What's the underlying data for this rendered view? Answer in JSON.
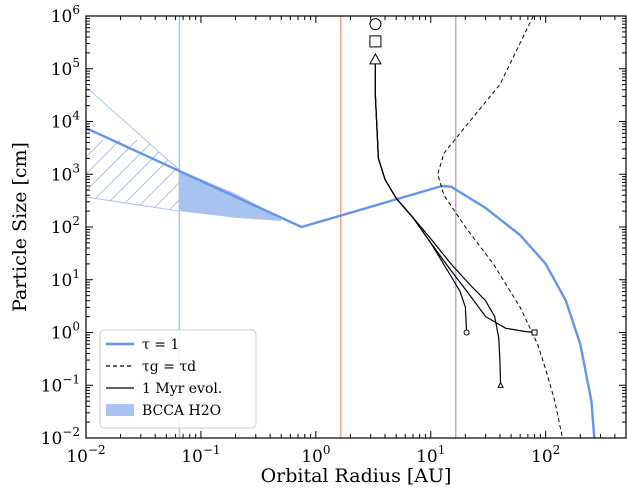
{
  "chart_data": {
    "type": "line",
    "xlabel": "Orbital Radius [AU]",
    "ylabel": "Particle Size [cm]",
    "xscale": "log",
    "yscale": "log",
    "xlim": [
      0.01,
      500
    ],
    "ylim": [
      0.01,
      1000000
    ],
    "x_ticks": [
      {
        "value": 0.01,
        "base": "10",
        "exp": "−2"
      },
      {
        "value": 0.1,
        "base": "10",
        "exp": "−1"
      },
      {
        "value": 1,
        "base": "10",
        "exp": "0"
      },
      {
        "value": 10,
        "base": "10",
        "exp": "1"
      },
      {
        "value": 100,
        "base": "10",
        "exp": "2"
      }
    ],
    "y_ticks": [
      {
        "value": 0.01,
        "base": "10",
        "exp": "−2"
      },
      {
        "value": 0.1,
        "base": "10",
        "exp": "−1"
      },
      {
        "value": 1,
        "base": "10",
        "exp": "0"
      },
      {
        "value": 10,
        "base": "10",
        "exp": "1"
      },
      {
        "value": 100,
        "base": "10",
        "exp": "2"
      },
      {
        "value": 1000,
        "base": "10",
        "exp": "3"
      },
      {
        "value": 10000,
        "base": "10",
        "exp": "4"
      },
      {
        "value": 100000,
        "base": "10",
        "exp": "5"
      },
      {
        "value": 1000000,
        "base": "10",
        "exp": "6"
      }
    ],
    "vertical_lines": [
      {
        "x": 0.065,
        "color": "#9ecae1"
      },
      {
        "x": 1.65,
        "color": "#f4a08a"
      },
      {
        "x": 16.5,
        "color": "#c9a0dc"
      }
    ],
    "series": [
      {
        "name": "τ = 1",
        "style": "solid-thick",
        "color": "#6495ed",
        "points": [
          [
            0.01,
            7500
          ],
          [
            0.75,
            100
          ],
          [
            12.5,
            600
          ],
          [
            15,
            580
          ],
          [
            30,
            230
          ],
          [
            60,
            70
          ],
          [
            100,
            20
          ],
          [
            150,
            4
          ],
          [
            200,
            0.6
          ],
          [
            250,
            0.05
          ],
          [
            265,
            0.01
          ]
        ]
      },
      {
        "name": "τg = τd",
        "style": "dashed",
        "color": "#000000",
        "points": [
          [
            78,
            1000000
          ],
          [
            40,
            50000
          ],
          [
            20,
            8000
          ],
          [
            13,
            2500
          ],
          [
            11.5,
            1000
          ],
          [
            13,
            400
          ],
          [
            20,
            100
          ],
          [
            35,
            20
          ],
          [
            60,
            3
          ],
          [
            85,
            0.6
          ],
          [
            100,
            0.2
          ],
          [
            120,
            0.05
          ],
          [
            140,
            0.01
          ]
        ]
      },
      {
        "name": "1 Myr evol.",
        "style": "solid",
        "color": "#000000",
        "tracks": [
          [
            [
              3.3,
              150000
            ],
            [
              3.3,
              30000
            ],
            [
              3.5,
              2000
            ],
            [
              4,
              800
            ],
            [
              5,
              350
            ],
            [
              7,
              150
            ],
            [
              10,
              50
            ],
            [
              14,
              15
            ],
            [
              18,
              6
            ],
            [
              20,
              3
            ],
            [
              20.5,
              1
            ]
          ],
          [
            [
              3.3,
              150000
            ],
            [
              3.3,
              30000
            ],
            [
              3.5,
              2000
            ],
            [
              4,
              800
            ],
            [
              5,
              350
            ],
            [
              7,
              150
            ],
            [
              10,
              50
            ],
            [
              15,
              15
            ],
            [
              22,
              5
            ],
            [
              30,
              2
            ],
            [
              45,
              1.2
            ],
            [
              65,
              1.05
            ],
            [
              80,
              1
            ]
          ],
          [
            [
              3.3,
              150000
            ],
            [
              3.3,
              30000
            ],
            [
              3.5,
              2000
            ],
            [
              4,
              800
            ],
            [
              5,
              350
            ],
            [
              7,
              150
            ],
            [
              10,
              60
            ],
            [
              15,
              20
            ],
            [
              22,
              8
            ],
            [
              30,
              4
            ],
            [
              36,
              2
            ],
            [
              39,
              0.8
            ],
            [
              40,
              0.3
            ],
            [
              40.5,
              0.1
            ]
          ]
        ],
        "end_markers": [
          {
            "x": 20.5,
            "y": 1,
            "shape": "circle"
          },
          {
            "x": 80,
            "y": 1,
            "shape": "square"
          },
          {
            "x": 40.5,
            "y": 0.1,
            "shape": "triangle"
          }
        ],
        "start_markers": [
          {
            "x": 3.3,
            "y": 700000,
            "shape": "circle"
          },
          {
            "x": 3.3,
            "y": 330000,
            "shape": "square"
          },
          {
            "x": 3.3,
            "y": 150000,
            "shape": "triangle"
          }
        ]
      },
      {
        "name": "BCCA H2O",
        "style": "filled",
        "color": "#a9c3f0",
        "solid_band": {
          "x": [
            0.065,
            0.2,
            0.5
          ],
          "upper": [
            1200,
            430,
            150
          ],
          "lower": [
            200,
            150,
            130
          ]
        },
        "hatched_band": {
          "x": [
            0.01,
            0.065
          ],
          "upper": [
            45000,
            1200
          ],
          "lower": [
            370,
            200
          ]
        }
      }
    ],
    "legend": {
      "placement": "lower-left",
      "entries": [
        {
          "label": "τ = 1",
          "kind": "line-thick",
          "color": "#6495ed"
        },
        {
          "label": "τg = τd",
          "kind": "line-dashed",
          "color": "#000000"
        },
        {
          "label": "1 Myr evol.",
          "kind": "line",
          "color": "#000000"
        },
        {
          "label": "BCCA H2O",
          "kind": "patch",
          "color": "#a9c3f0"
        }
      ]
    },
    "grid": false
  }
}
